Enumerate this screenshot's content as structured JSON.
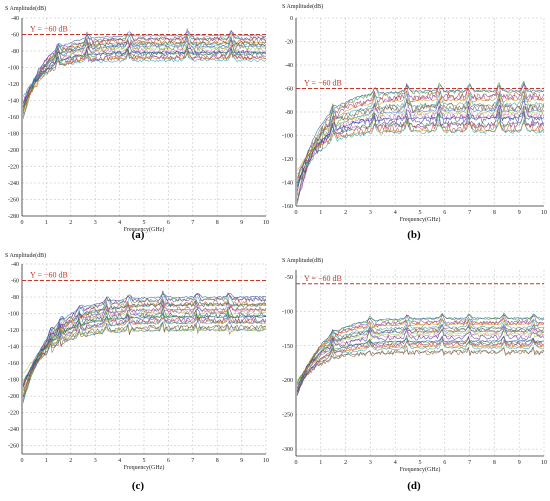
{
  "figure": {
    "background": "#ffffff"
  },
  "colors": {
    "grid": "#bdbdbd",
    "axis": "#333333",
    "reference_line": "#c0392b",
    "trace_palette": [
      "#1f4aa8",
      "#2a8c2a",
      "#7a2fa0",
      "#c0392b",
      "#d08a00",
      "#1aa0b0",
      "#555555",
      "#8a5a2b",
      "#3a6fd0",
      "#9acd32",
      "#e066b0",
      "#2f2f8f"
    ]
  },
  "chart_data": [
    {
      "panel_label": "(a)",
      "type": "line",
      "ylabel": "S Amplitude(dB)",
      "xlabel": "Frequency(GHz)",
      "xlim": [
        0,
        10
      ],
      "ylim": [
        -280,
        -40
      ],
      "x_ticks": [
        0,
        1,
        2,
        3,
        4,
        5,
        6,
        7,
        8,
        9,
        10
      ],
      "y_ticks": [
        -40,
        -60,
        -80,
        -100,
        -120,
        -140,
        -160,
        -180,
        -200,
        -220,
        -240,
        -260,
        -280
      ],
      "grid": true,
      "reference": {
        "y": -60,
        "label": "Y = −60 dB"
      },
      "trace_families": [
        {
          "count": 18,
          "start": [
            0.05,
            -155
          ],
          "end": [
            10,
            -62
          ],
          "end_spread": 30,
          "knee": 0.8,
          "resonances": [
            1.5,
            2.7,
            4.4,
            6.8,
            8.6
          ]
        }
      ]
    },
    {
      "panel_label": "(b)",
      "type": "line",
      "ylabel": "S Amplitude(dB)",
      "xlabel": "Frequency(GHz)",
      "xlim": [
        0,
        10
      ],
      "ylim": [
        -160,
        0
      ],
      "x_ticks": [
        0,
        1,
        2,
        3,
        4,
        5,
        6,
        7,
        8,
        9,
        10
      ],
      "y_ticks": [
        0,
        -20,
        -40,
        -60,
        -80,
        -100,
        -120,
        -140,
        -160
      ],
      "grid": true,
      "reference": {
        "y": -60,
        "label": "Y = −60 dB"
      },
      "trace_families": [
        {
          "count": 18,
          "start": [
            0.05,
            -150
          ],
          "end": [
            10,
            -62
          ],
          "end_spread": 35,
          "knee": 0.9,
          "resonances": [
            1.5,
            3.2,
            4.5,
            5.8,
            7.0,
            8.2,
            9.2
          ]
        }
      ]
    },
    {
      "panel_label": "(c)",
      "type": "line",
      "ylabel": "S Amplitude(dB)",
      "xlabel": "Frequency(GHz)",
      "xlim": [
        0,
        10
      ],
      "ylim": [
        -270,
        -40
      ],
      "x_ticks": [
        0,
        1,
        2,
        3,
        4,
        5,
        6,
        7,
        8,
        9,
        10
      ],
      "y_ticks": [
        -40,
        -60,
        -80,
        -100,
        -120,
        -140,
        -160,
        -180,
        -200,
        -220,
        -240,
        -260
      ],
      "grid": true,
      "reference": {
        "y": -60,
        "label": "Y = −60 dB"
      },
      "trace_families": [
        {
          "count": 22,
          "start": [
            0.05,
            -200
          ],
          "end": [
            10,
            -80
          ],
          "end_spread": 40,
          "knee": 1.1,
          "resonances": [
            1.2,
            1.6,
            2.4,
            3.5,
            4.4,
            5.8,
            7.2,
            8.5
          ]
        }
      ]
    },
    {
      "panel_label": "(d)",
      "type": "line",
      "ylabel": "S Amplitude(dB)",
      "xlabel": "Frequency(GHz)",
      "xlim": [
        0,
        10
      ],
      "ylim": [
        -310,
        -40
      ],
      "x_ticks": [
        0,
        1,
        2,
        3,
        4,
        5,
        6,
        7,
        8,
        9,
        10
      ],
      "y_ticks": [
        -50,
        -100,
        -150,
        -200,
        -250,
        -300
      ],
      "grid": true,
      "reference": {
        "y": -60,
        "label": "Y = −60 dB"
      },
      "trace_families": [
        {
          "count": 20,
          "start": [
            0.05,
            -220
          ],
          "end": [
            10,
            -110
          ],
          "end_spread": 50,
          "knee": 0.9,
          "resonances": [
            1.5,
            3.0,
            4.5,
            5.9,
            7.0,
            8.4,
            9.6
          ]
        }
      ]
    }
  ]
}
